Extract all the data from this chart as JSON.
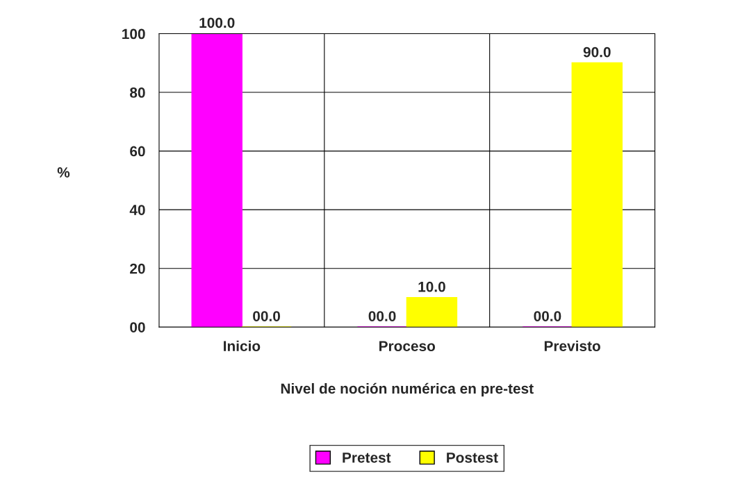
{
  "chart_data": {
    "type": "bar",
    "xlabel": "Nivel de noción numérica en pre-test",
    "ylabel": "%",
    "categories": [
      "Inicio",
      "Proceso",
      "Previsto"
    ],
    "series": [
      {
        "name": "Pretest",
        "color": "#ff00ff",
        "values": [
          100,
          0,
          0
        ],
        "value_labels": [
          "100.0",
          "00.0",
          "00.0"
        ]
      },
      {
        "name": "Postest",
        "color": "#ffff00",
        "values": [
          0,
          10,
          90
        ],
        "value_labels": [
          "00.0",
          "10.0",
          "90.0"
        ]
      }
    ],
    "ylim": [
      0,
      100
    ],
    "yticks": [
      {
        "value": 0,
        "label": "00"
      },
      20,
      40,
      60,
      80,
      100
    ],
    "grid": true,
    "legend": "bottom"
  }
}
